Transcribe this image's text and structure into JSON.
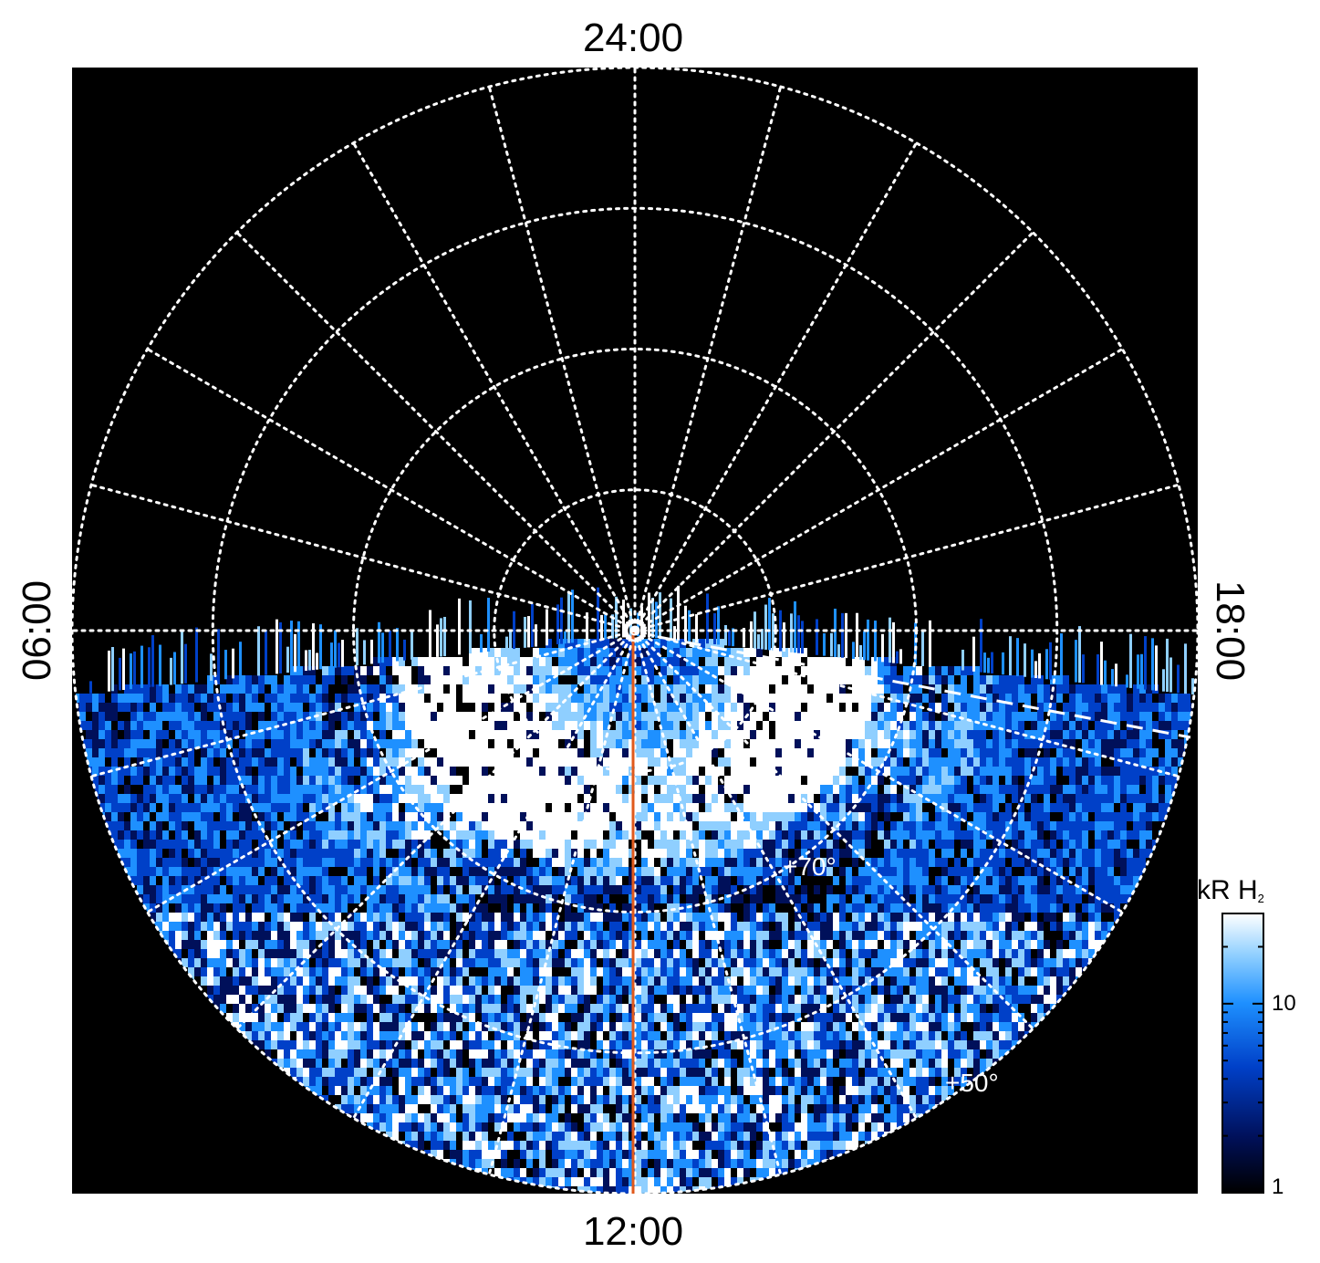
{
  "chart_data": {
    "type": "heatmap",
    "projection": "polar",
    "title": "",
    "local_time_labels": {
      "top": "24:00",
      "bottom": "12:00",
      "left": "06:00",
      "right": "18:00"
    },
    "latitude_grid_deg": [
      80,
      70,
      60,
      50
    ],
    "longitude_grid_spacing_hours": 1,
    "grid": true,
    "annotations": [
      "+70°",
      "+50°"
    ],
    "reference_line_local_time": "12:00",
    "colorbar": {
      "label": "kR H",
      "label_subscript": "2",
      "scale": "log",
      "range": [
        1,
        30
      ],
      "ticks": [
        "1",
        "10"
      ],
      "position": "bottom-right",
      "colormap": [
        "#000000",
        "#00105a",
        "#0040c8",
        "#1e90ff",
        "#8fcfff",
        "#ffffff"
      ]
    },
    "colors": {
      "background": "#000000",
      "grid": "#ffffff",
      "reference_line": "#e05a1c"
    }
  }
}
